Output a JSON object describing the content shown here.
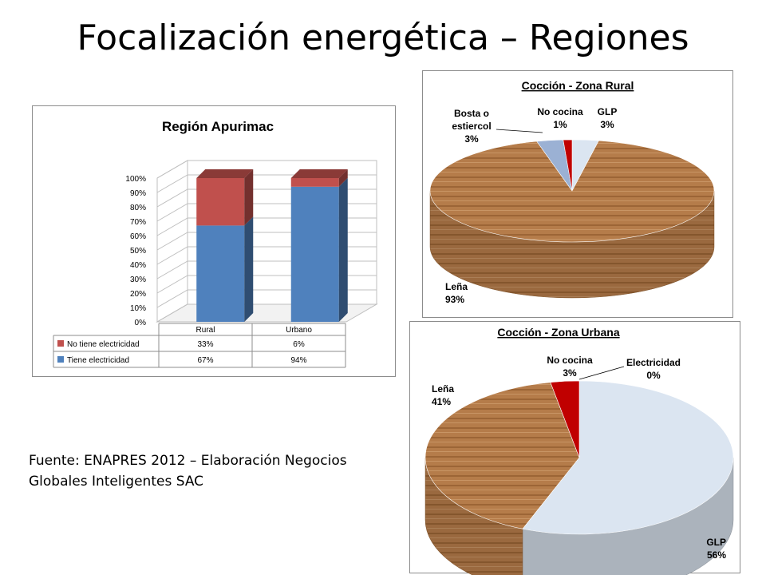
{
  "slide": {
    "title": "Focalización energética – Regiones",
    "source_line1": "Fuente: ENAPRES 2012 – Elaboración Negocios",
    "source_line2": "Globales Inteligentes SAC"
  },
  "chart_data": [
    {
      "type": "bar",
      "stacked": true,
      "title": "Región Apurimac",
      "categories": [
        "Rural",
        "Urbano"
      ],
      "series": [
        {
          "name": "Tiene electricidad",
          "values": [
            67,
            94
          ],
          "labels": [
            "67%",
            "94%"
          ],
          "color": "#4f81bd"
        },
        {
          "name": "No tiene electricidad",
          "values": [
            33,
            6
          ],
          "labels": [
            "33%",
            "6%"
          ],
          "color": "#c0504d"
        }
      ],
      "ylim": [
        0,
        100
      ],
      "yticks": [
        "0%",
        "10%",
        "20%",
        "30%",
        "40%",
        "50%",
        "60%",
        "70%",
        "80%",
        "90%",
        "100%"
      ],
      "grid": true,
      "legend": "data-table"
    },
    {
      "type": "pie",
      "title": "Cocción - Zona Rural",
      "slices": [
        {
          "name": "GLP",
          "value": 3,
          "label": "3%",
          "color": "#dbe5f1"
        },
        {
          "name": "Leña",
          "value": 93,
          "label": "93%",
          "color": "#b87d4b"
        },
        {
          "name": "Bosta o estiercol",
          "value": 3,
          "label": "3%",
          "color": "#9bb1d4"
        },
        {
          "name": "No cocina",
          "value": 1,
          "label": "1%",
          "color": "#c00000"
        }
      ]
    },
    {
      "type": "pie",
      "title": "Cocción - Zona Urbana",
      "slices": [
        {
          "name": "Electricidad",
          "value": 0,
          "label": "0%",
          "color": "#4f81bd"
        },
        {
          "name": "GLP",
          "value": 56,
          "label": "56%",
          "color": "#dbe5f1"
        },
        {
          "name": "Leña",
          "value": 41,
          "label": "41%",
          "color": "#b87d4b"
        },
        {
          "name": "No cocina",
          "value": 3,
          "label": "3%",
          "color": "#c00000"
        }
      ]
    }
  ]
}
